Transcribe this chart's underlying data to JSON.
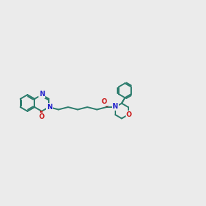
{
  "background_color": "#ebebeb",
  "bond_color": "#2d7d6e",
  "n_color": "#2222cc",
  "o_color": "#cc2222",
  "lw": 1.5,
  "figsize": [
    3.0,
    3.0
  ],
  "dpi": 100,
  "xlim": [
    -0.5,
    11.5
  ],
  "ylim": [
    0.5,
    5.5
  ]
}
